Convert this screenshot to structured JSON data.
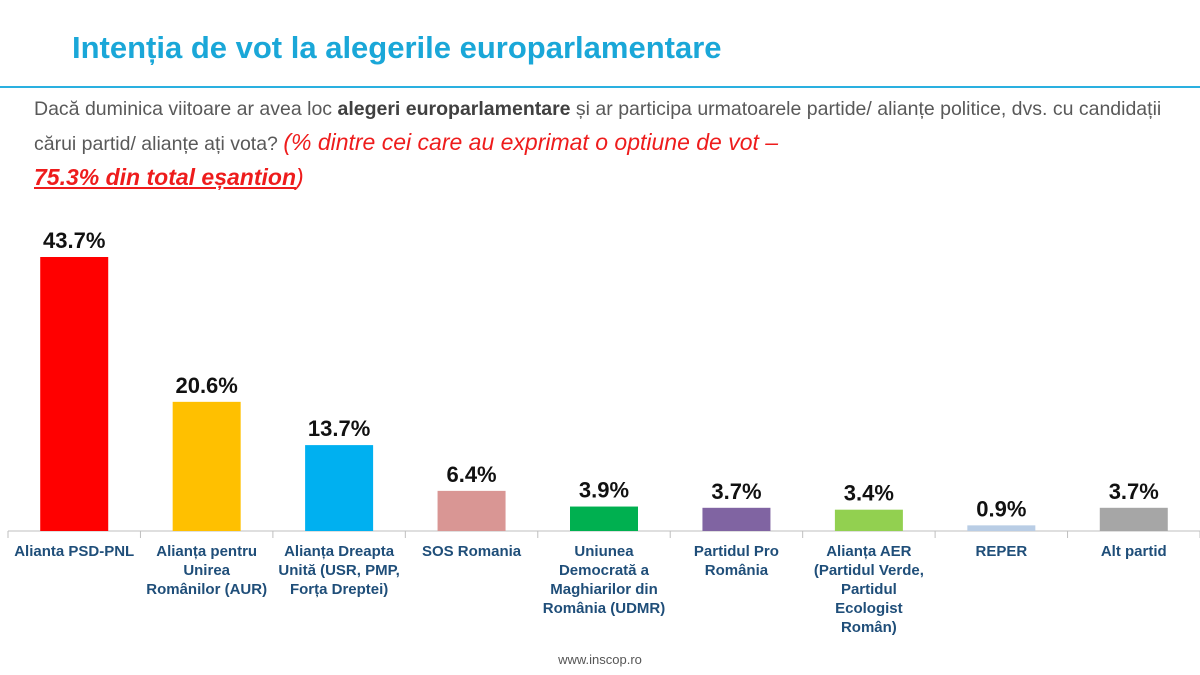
{
  "title": "Intenția de vot la alegerile europarlamentare",
  "question": {
    "part1": "Dacă duminica viitoare ar avea loc ",
    "bold": "alegeri europarlamentare",
    "part2": " și ar participa urmatoarele partide/ alianțe politice, dvs. cu candidații cărui partid/ alianțe ați vota? ",
    "note": "(% dintre cei care au exprimat o optiune de vot –",
    "note_underlined": "75.3% din total eșantion",
    "note_close": ")"
  },
  "source": "www.inscop.ro",
  "chart_data": {
    "type": "bar",
    "categories": [
      "Alianta PSD-PNL",
      "Alianța pentru Unirea Românilor (AUR)",
      "Alianța Dreapta Unită (USR, PMP, Forța Dreptei)",
      "SOS Romania",
      "Uniunea Democrată a Maghiarilor din România (UDMR)",
      "Partidul Pro România",
      "Alianța AER (Partidul Verde, Partidul Ecologist Român)",
      "REPER",
      "Alt partid"
    ],
    "values": [
      43.7,
      20.6,
      13.7,
      6.4,
      3.9,
      3.7,
      3.4,
      0.9,
      3.7
    ],
    "value_labels": [
      "43.7%",
      "20.6%",
      "13.7%",
      "6.4%",
      "3.9%",
      "3.7%",
      "3.4%",
      "0.9%",
      "3.7%"
    ],
    "colors": [
      "#ff0000",
      "#ffc000",
      "#00b0f0",
      "#d99694",
      "#00b050",
      "#8064a2",
      "#92d050",
      "#b9cde5",
      "#a6a6a6"
    ],
    "ylim": [
      0,
      45
    ],
    "grid": false,
    "legend": "none"
  }
}
